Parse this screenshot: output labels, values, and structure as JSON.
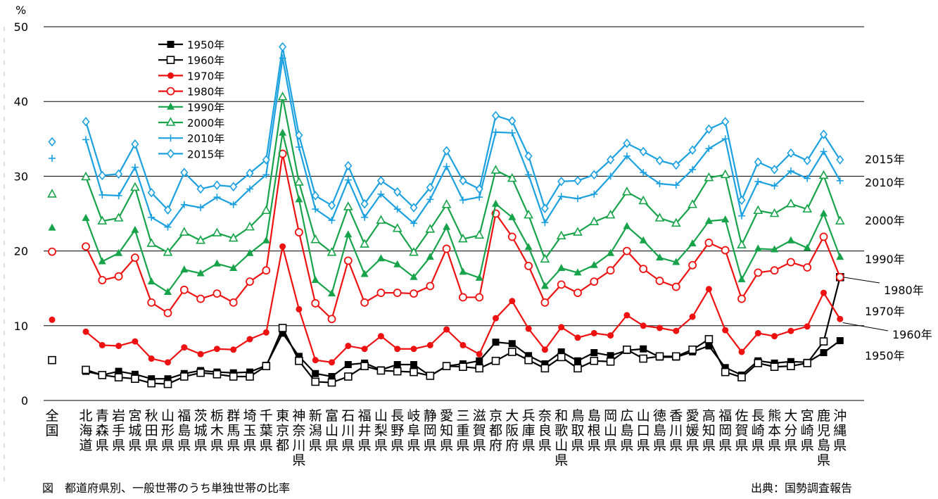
{
  "chart_data": {
    "type": "line",
    "ylabel": "%",
    "ylim": [
      0,
      50
    ],
    "yticks": [
      0,
      10,
      20,
      30,
      40,
      50
    ],
    "grid": true,
    "legend_position": "top-left",
    "national": {
      "label": "全国",
      "values": {
        "1950年": 5.4,
        "1960年": 5.4,
        "1970年": 10.8,
        "1980年": 19.9,
        "1990年": 23.1,
        "2000年": 27.6,
        "2010年": 32.4,
        "2015年": 34.6
      }
    },
    "categories": [
      "北海道",
      "青森県",
      "岩手県",
      "宮城県",
      "秋田県",
      "山形県",
      "福島県",
      "茨城県",
      "栃木県",
      "群馬県",
      "埼玉県",
      "千葉県",
      "東京都",
      "神奈川県",
      "新潟県",
      "富山県",
      "石川県",
      "福井県",
      "山梨県",
      "長野県",
      "岐阜県",
      "静岡県",
      "愛知県",
      "三重県",
      "滋賀県",
      "京都府",
      "大阪府",
      "兵庫県",
      "奈良県",
      "和歌山県",
      "鳥取県",
      "島根県",
      "岡山県",
      "広島県",
      "山口県",
      "徳島県",
      "香川県",
      "愛媛県",
      "高知県",
      "福岡県",
      "佐賀県",
      "長崎県",
      "熊本県",
      "大分県",
      "宮崎県",
      "鹿児島県",
      "沖縄県"
    ],
    "series": [
      {
        "name": "1950年",
        "color": "#000000",
        "marker": "filled-square",
        "end_label": "1950年",
        "values": [
          3.9,
          3.4,
          3.9,
          3.5,
          2.9,
          2.9,
          3.6,
          4.0,
          3.8,
          3.7,
          3.8,
          4.7,
          9.0,
          5.9,
          3.6,
          3.2,
          4.8,
          5.0,
          4.1,
          4.8,
          4.8,
          3.3,
          4.6,
          4.9,
          5.3,
          7.8,
          7.6,
          6.0,
          4.9,
          6.5,
          5.3,
          6.4,
          6.0,
          6.7,
          6.9,
          5.8,
          5.8,
          6.5,
          7.3,
          4.4,
          3.4,
          5.3,
          5.0,
          5.2,
          5.1,
          6.4,
          8.0
        ]
      },
      {
        "name": "1960年",
        "color": "#000000",
        "marker": "open-square",
        "end_label": "1960年",
        "values": [
          4.1,
          3.4,
          3.1,
          2.9,
          2.3,
          2.2,
          3.2,
          3.7,
          3.5,
          3.2,
          3.2,
          4.6,
          9.7,
          5.3,
          2.5,
          2.4,
          3.2,
          4.6,
          4.0,
          3.9,
          3.8,
          3.3,
          4.6,
          4.5,
          4.3,
          5.3,
          6.5,
          5.4,
          4.3,
          5.8,
          4.3,
          5.3,
          5.2,
          6.8,
          5.6,
          5.9,
          5.9,
          6.8,
          8.2,
          3.8,
          3.1,
          5.0,
          4.5,
          4.6,
          5.0,
          7.9,
          16.5
        ]
      },
      {
        "name": "1970年",
        "color": "#ee1111",
        "marker": "filled-circle",
        "end_label": "1970年",
        "values": [
          9.2,
          7.4,
          7.3,
          7.9,
          5.6,
          5.1,
          7.1,
          6.2,
          6.9,
          6.8,
          8.2,
          9.1,
          20.6,
          12.2,
          5.4,
          5.1,
          7.3,
          6.9,
          8.6,
          6.9,
          6.9,
          7.4,
          9.5,
          7.4,
          6.2,
          11.0,
          13.3,
          9.6,
          6.8,
          9.8,
          8.4,
          9.0,
          8.7,
          11.4,
          10.0,
          9.7,
          9.3,
          11.2,
          14.9,
          9.4,
          6.5,
          9.0,
          8.6,
          9.3,
          9.9,
          14.4,
          10.9
        ]
      },
      {
        "name": "1980年",
        "color": "#ee1111",
        "marker": "open-circle",
        "end_label": "1980年",
        "values": [
          20.6,
          16.1,
          16.6,
          19.1,
          13.1,
          11.7,
          14.8,
          13.6,
          14.3,
          13.1,
          15.9,
          17.4,
          33.0,
          22.5,
          13.0,
          10.9,
          18.7,
          13.1,
          14.4,
          14.4,
          14.3,
          15.3,
          20.3,
          13.8,
          13.8,
          25.0,
          21.9,
          18.0,
          13.1,
          15.5,
          14.4,
          15.9,
          17.4,
          20.0,
          17.6,
          16.0,
          15.2,
          18.1,
          21.1,
          20.1,
          13.6,
          17.1,
          17.4,
          18.5,
          17.8,
          21.9,
          16.5
        ]
      },
      {
        "name": "1990年",
        "color": "#17a34a",
        "marker": "filled-triangle",
        "end_label": "1990年",
        "values": [
          24.4,
          18.6,
          19.7,
          22.8,
          15.9,
          14.5,
          17.5,
          17.0,
          18.3,
          17.7,
          19.7,
          21.4,
          35.8,
          26.9,
          16.1,
          14.3,
          22.2,
          16.9,
          19.0,
          18.2,
          16.5,
          19.2,
          23.2,
          17.2,
          16.4,
          26.3,
          24.5,
          20.5,
          15.3,
          17.7,
          17.1,
          18.1,
          19.7,
          23.3,
          21.4,
          19.1,
          18.5,
          21.0,
          24.0,
          24.2,
          16.2,
          20.3,
          20.2,
          21.4,
          20.4,
          25.0,
          19.2
        ]
      },
      {
        "name": "2000年",
        "color": "#17a34a",
        "marker": "open-triangle",
        "end_label": "2000年",
        "values": [
          29.9,
          24.0,
          24.4,
          28.5,
          21.0,
          19.8,
          22.5,
          21.4,
          22.4,
          21.7,
          23.2,
          25.4,
          40.6,
          29.2,
          21.5,
          19.8,
          25.9,
          20.9,
          24.1,
          23.0,
          19.8,
          22.9,
          26.2,
          21.6,
          22.1,
          30.8,
          29.7,
          24.8,
          18.9,
          22.0,
          22.5,
          23.9,
          24.8,
          27.9,
          26.7,
          24.4,
          23.7,
          26.2,
          29.8,
          30.2,
          20.8,
          25.4,
          25.0,
          26.3,
          25.6,
          30.1,
          24.0
        ]
      },
      {
        "name": "2010年",
        "color": "#1ba0e0",
        "marker": "plus",
        "end_label": "2010年",
        "values": [
          34.9,
          27.5,
          27.4,
          31.2,
          24.5,
          23.2,
          26.2,
          25.8,
          27.2,
          26.2,
          28.3,
          30.2,
          45.8,
          33.9,
          25.6,
          24.1,
          29.5,
          24.5,
          27.6,
          25.6,
          23.7,
          26.9,
          31.3,
          26.8,
          27.2,
          35.9,
          35.8,
          30.2,
          23.8,
          27.3,
          27.0,
          27.6,
          30.0,
          32.7,
          30.5,
          29.0,
          28.8,
          30.9,
          33.7,
          35.0,
          24.7,
          29.3,
          28.7,
          30.7,
          29.7,
          33.3,
          29.4
        ]
      },
      {
        "name": "2015年",
        "color": "#1ba0e0",
        "marker": "open-diamond",
        "end_label": "2015年",
        "values": [
          37.3,
          30.1,
          30.3,
          34.3,
          27.8,
          25.5,
          30.5,
          28.3,
          28.8,
          28.6,
          30.4,
          32.2,
          47.3,
          35.5,
          27.4,
          26.1,
          31.4,
          26.3,
          29.4,
          27.9,
          25.8,
          28.5,
          33.4,
          29.4,
          28.3,
          38.1,
          37.4,
          32.7,
          25.7,
          29.3,
          29.4,
          30.2,
          32.2,
          34.4,
          33.3,
          32.1,
          31.5,
          33.5,
          36.3,
          37.3,
          26.8,
          31.9,
          30.9,
          33.1,
          32.1,
          35.6,
          32.2
        ]
      }
    ],
    "caption_left": "図　都道府県別、一般世帯のうち単独世帯の比率",
    "caption_right": "出典：国勢調査報告"
  }
}
